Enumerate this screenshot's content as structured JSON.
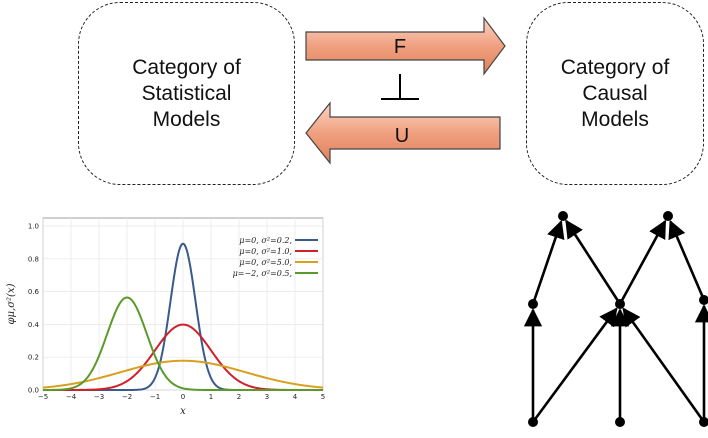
{
  "left_category": {
    "label": "Category of\nStatistical\nModels"
  },
  "right_category": {
    "label": "Category of\nCausal\nModels"
  },
  "functor_forward": {
    "label": "F",
    "color": "#f0a080"
  },
  "functor_backward": {
    "label": "U",
    "color": "#f0a080"
  },
  "adjunction_symbol": "⊥",
  "chart_data": {
    "type": "line",
    "title": "",
    "xlabel": "x",
    "ylabel": "φμ,σ²(x)",
    "xlim": [
      -5,
      5
    ],
    "ylim": [
      0,
      1.0
    ],
    "xticks": [
      -5,
      -4,
      -3,
      -2,
      -1,
      0,
      1,
      2,
      3,
      4,
      5
    ],
    "yticks": [
      0.0,
      0.2,
      0.4,
      0.6,
      0.8,
      1.0
    ],
    "grid": true,
    "legend_position": "top-right",
    "series": [
      {
        "name": "μ=0,   σ²=0.2,",
        "mu": 0,
        "variance": 0.2,
        "color": "#3a5a8c"
      },
      {
        "name": "μ=0,   σ²=1.0,",
        "mu": 0,
        "variance": 1.0,
        "color": "#d0202a"
      },
      {
        "name": "μ=0,   σ²=5.0,",
        "mu": 0,
        "variance": 5.0,
        "color": "#d9a020"
      },
      {
        "name": "μ=−2,  σ²=0.5,",
        "mu": -2,
        "variance": 0.5,
        "color": "#5a9a2a"
      }
    ]
  },
  "causal_graph": {
    "nodes": [
      "top-left",
      "top-right",
      "mid-left",
      "mid-center",
      "mid-right",
      "bottom-left",
      "bottom-center",
      "bottom-right"
    ],
    "edges": [
      [
        "mid-left",
        "top-left"
      ],
      [
        "mid-center",
        "top-left"
      ],
      [
        "mid-center",
        "top-right"
      ],
      [
        "mid-right",
        "top-right"
      ],
      [
        "bottom-left",
        "mid-left"
      ],
      [
        "bottom-left",
        "mid-center"
      ],
      [
        "bottom-center",
        "mid-center"
      ],
      [
        "bottom-right",
        "mid-center"
      ],
      [
        "bottom-right",
        "mid-right"
      ]
    ]
  }
}
